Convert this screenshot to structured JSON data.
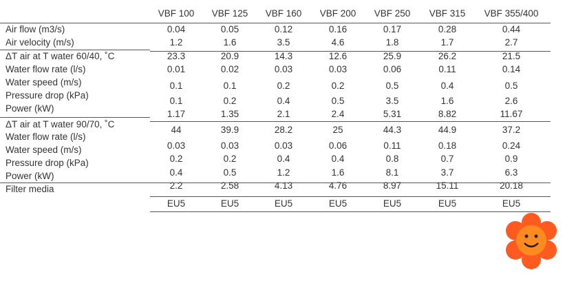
{
  "table": {
    "columns": [
      "VBF 100",
      "VBF 125",
      "VBF 160",
      "VBF 200",
      "VBF 250",
      "VBF 315",
      "VBF 355/400"
    ],
    "labels": [
      "Air flow (m3/s)",
      "Air velocity (m/s)",
      "ΔT air at T water 60/40, ˚C",
      "Water flow rate (l/s)",
      "Water speed (m/s)",
      "Pressure drop (kPa)",
      "Power (kW)",
      "ΔT air at T water 90/70, ˚C",
      "Water flow rate (l/s)",
      "Water speed (m/s)",
      "Pressure drop (kPa)",
      "Power (kW)",
      "Filter media"
    ],
    "rows": [
      [
        "0.04",
        "0.05",
        "0.12",
        "0.16",
        "0.17",
        "0.28",
        "0.44"
      ],
      [
        "1.2",
        "1.6",
        "3.5",
        "4.6",
        "1.8",
        "1.7",
        "2.7"
      ],
      [
        "23.3",
        "20.9",
        "14.3",
        "12.6",
        "25.9",
        "26.2",
        "21.5"
      ],
      [
        "0.01",
        "0.02",
        "0.03",
        "0.03",
        "0.06",
        "0.11",
        "0.14"
      ],
      [
        "0.1",
        "0.1",
        "0.2",
        "0.2",
        "0.5",
        "0.4",
        "0.5"
      ],
      [
        "0.1",
        "0.2",
        "0.4",
        "0.5",
        "3.5",
        "1.6",
        "2.6"
      ],
      [
        "1.17",
        "1.35",
        "2.1",
        "2.4",
        "5.31",
        "8.82",
        "11.67"
      ],
      [
        "44",
        "39.9",
        "28.2",
        "25",
        "44.3",
        "44.9",
        "37.2"
      ],
      [
        "0.03",
        "0.03",
        "0.03",
        "0.06",
        "0.11",
        "0.18",
        "0.24"
      ],
      [
        "0.2",
        "0.2",
        "0.4",
        "0.4",
        "0.8",
        "0.7",
        "0.9"
      ],
      [
        "0.4",
        "0.5",
        "1.2",
        "1.6",
        "8.1",
        "3.7",
        "6.3"
      ],
      [
        "2.2",
        "2.58",
        "4.13",
        "4.76",
        "8.97",
        "15.11",
        "20.18"
      ],
      [
        "EU5",
        "EU5",
        "EU5",
        "EU5",
        "EU5",
        "EU5",
        "EU5"
      ]
    ]
  }
}
